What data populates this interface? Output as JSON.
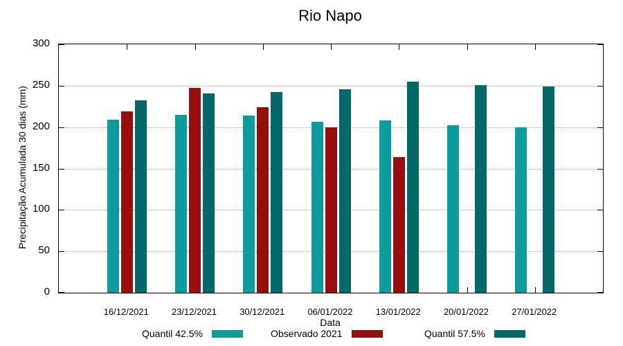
{
  "title": "Rio Napo",
  "chart_data": {
    "type": "bar",
    "title": "Rio Napo",
    "xlabel": "Data",
    "ylabel": "Precipitação Acumulada 30 dias (mm)",
    "ylim": [
      0,
      300
    ],
    "yticks": [
      0,
      50,
      100,
      150,
      200,
      250,
      300
    ],
    "grid": true,
    "legend_position": "bottom",
    "categories": [
      "16/12/2021",
      "23/12/2021",
      "30/12/2021",
      "06/01/2022",
      "13/01/2022",
      "20/01/2022",
      "27/01/2022"
    ],
    "series": [
      {
        "name": "Quantil 42.5%",
        "color": "#0b9c9c",
        "values": [
          209,
          215,
          214,
          206,
          208,
          202,
          200
        ]
      },
      {
        "name": "Observado 2021",
        "color": "#970f0d",
        "values": [
          219,
          247,
          224,
          200,
          164,
          null,
          null
        ]
      },
      {
        "name": "Quantil 57.5%",
        "color": "#036868",
        "values": [
          232,
          241,
          242,
          246,
          255,
          251,
          249
        ]
      }
    ]
  }
}
